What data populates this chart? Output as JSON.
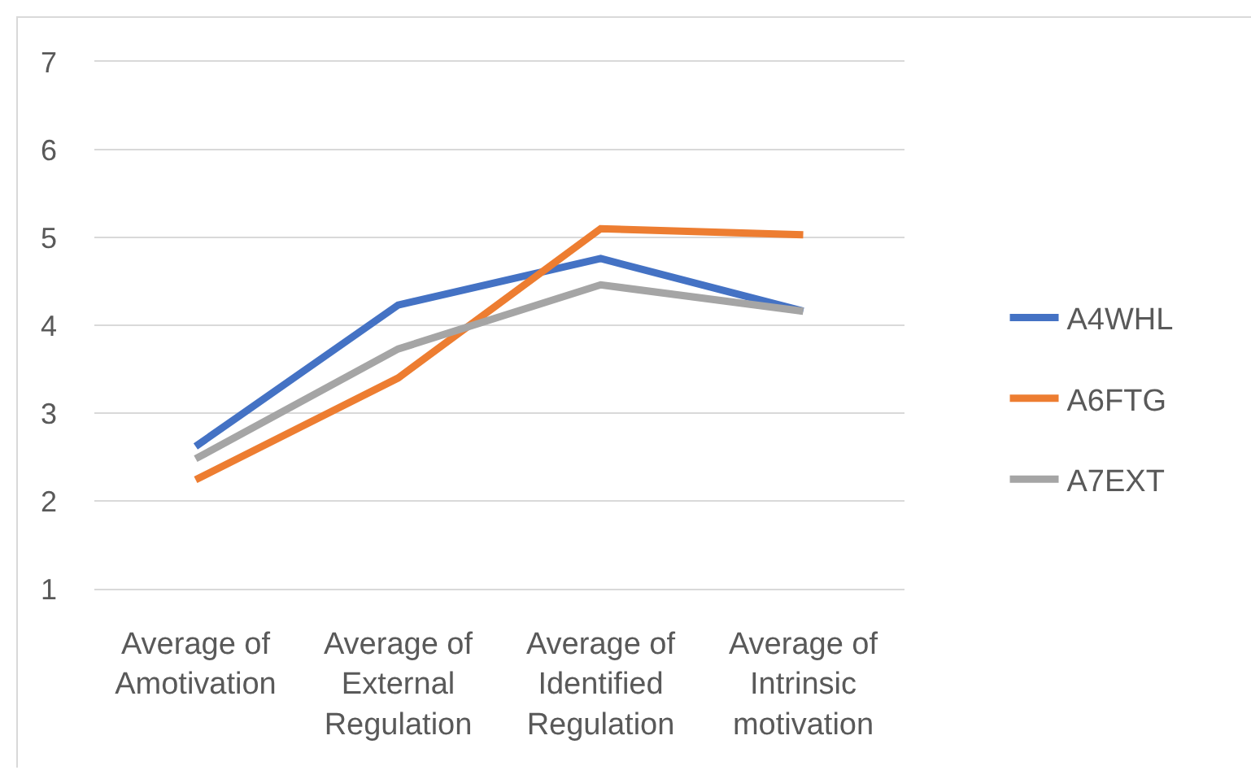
{
  "chart_data": {
    "type": "line",
    "categories": [
      "Average of Amotivation",
      "Average of External Regulation",
      "Average of Identified Regulation",
      "Average of Intrinsic motivation"
    ],
    "series": [
      {
        "name": "A4WHL",
        "color": "#4472c4",
        "values": [
          2.62,
          4.23,
          4.76,
          4.16
        ]
      },
      {
        "name": "A6FTG",
        "color": "#ed7d31",
        "values": [
          2.24,
          3.4,
          5.1,
          5.03
        ]
      },
      {
        "name": "A7EXT",
        "color": "#a5a5a5",
        "values": [
          2.48,
          3.73,
          4.46,
          4.16
        ]
      }
    ],
    "ylim": [
      1,
      7
    ],
    "yticks": [
      1,
      2,
      3,
      4,
      5,
      6,
      7
    ],
    "grid": "y",
    "legend": "right"
  }
}
